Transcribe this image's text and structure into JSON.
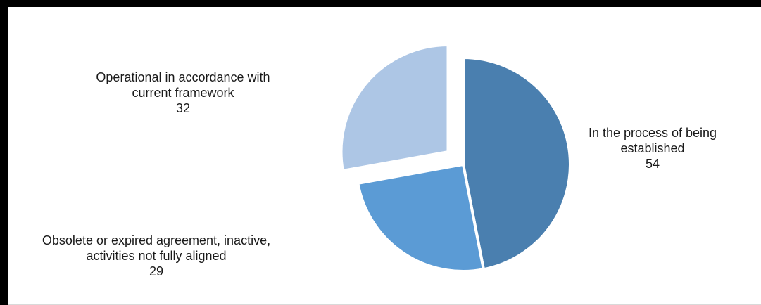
{
  "chart_data": {
    "type": "pie",
    "title": "",
    "slices": [
      {
        "label_lines": [
          "In the process of being",
          "established"
        ],
        "value": 54,
        "color": "#4a7faf",
        "exploded": false
      },
      {
        "label_lines": [
          "Obsolete or expired agreement, inactive,",
          "activities not fully aligned"
        ],
        "value": 29,
        "color": "#5b9bd5",
        "exploded": false
      },
      {
        "label_lines": [
          "Operational in accordance with",
          "current framework"
        ],
        "value": 32,
        "color": "#adc6e5",
        "exploded": true
      }
    ],
    "start": "top",
    "direction": "clockwise",
    "legend": "none",
    "data_labels": "outside"
  }
}
